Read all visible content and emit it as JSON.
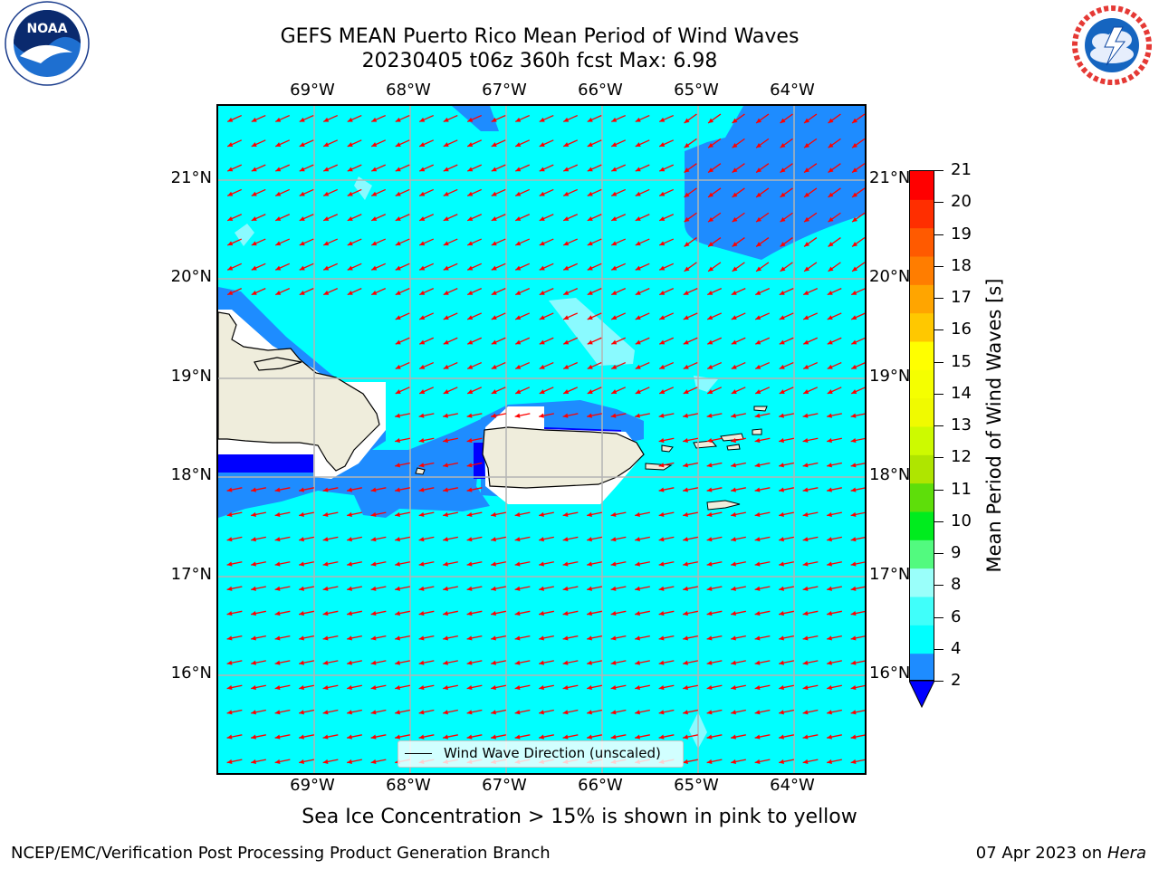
{
  "header": {
    "title_line1": "GEFS MEAN Puerto Rico Mean Period of Wind Waves",
    "title_line2": "20230405 t06z 360h fcst   Max: 6.98"
  },
  "logos": {
    "left": "NOAA",
    "right": "NATIONAL WEATHER SERVICE"
  },
  "map": {
    "lon_labels": [
      "69°W",
      "68°W",
      "67°W",
      "66°W",
      "65°W",
      "64°W"
    ],
    "lat_labels": [
      "21°N",
      "20°N",
      "19°N",
      "18°N",
      "17°N",
      "16°N"
    ],
    "legend_label": "Wind Wave Direction (unscaled)",
    "colors": {
      "ocean": "#00ffff",
      "land": "#efeddc",
      "blue_band": "#1e8cff",
      "dark_blue": "#0000ff",
      "light_cyan": "#8afaff",
      "arrow": "#ff0000",
      "grid": "#b4b4b4"
    },
    "arrow_direction": "toward south-west"
  },
  "colorbar": {
    "title": "Mean Period of Wind Waves [s]",
    "ticks": [
      "21",
      "20",
      "19",
      "18",
      "17",
      "16",
      "15",
      "14",
      "13",
      "12",
      "11",
      "10",
      "9",
      "8",
      "6",
      "4",
      "2"
    ],
    "colors": [
      "#1e8cff",
      "#00ffff",
      "#40fffa",
      "#9afffa",
      "#52fa7f",
      "#00ec1e",
      "#5ede0a",
      "#afe500",
      "#cdfa00",
      "#f0fa00",
      "#f5ff00",
      "#ffff00",
      "#ffc800",
      "#ffa500",
      "#ff7d00",
      "#ff5a00",
      "#ff2e00",
      "#ff0000"
    ],
    "under_color": "#0000ff"
  },
  "notes": {
    "sea_ice": "Sea Ice Concentration > 15% is shown in pink to yellow"
  },
  "footer": {
    "left": "NCEP/EMC/Verification Post Processing Product Generation Branch",
    "date": "07 Apr 2023 on",
    "host": "Hera"
  }
}
